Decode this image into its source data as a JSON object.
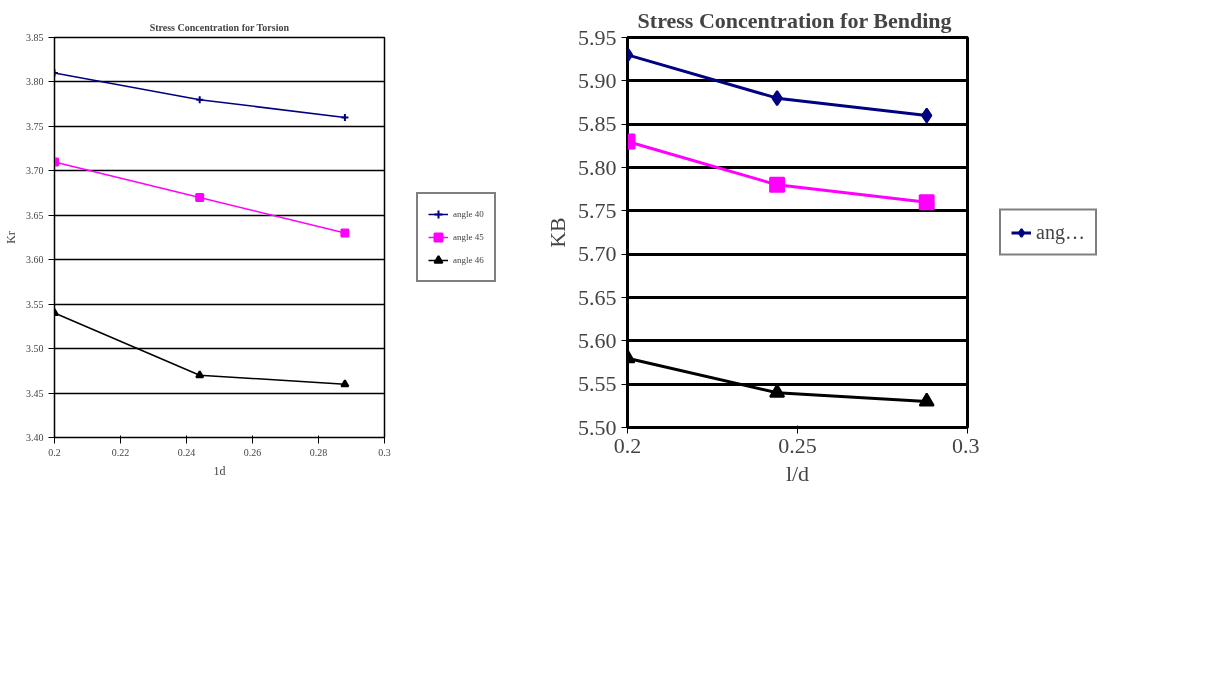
{
  "chart_data": [
    {
      "type": "line",
      "title": "Stress Concentration for Torsion",
      "xlabel": "1d",
      "ylabel": "Kr",
      "x": [
        0.2,
        0.244,
        0.288
      ],
      "series": [
        {
          "name": "angle 40",
          "color": "#000080",
          "marker": "cross",
          "values": [
            3.81,
            3.78,
            3.76
          ]
        },
        {
          "name": "angle 45",
          "color": "#ff00ff",
          "marker": "square",
          "values": [
            3.71,
            3.67,
            3.63
          ]
        },
        {
          "name": "angle 46",
          "color": "#000000",
          "marker": "triangle",
          "values": [
            3.54,
            3.47,
            3.46
          ]
        }
      ],
      "xlim": [
        0.2,
        0.3
      ],
      "xticks": [
        0.2,
        0.22,
        0.24,
        0.26,
        0.28,
        0.3
      ],
      "ylim": [
        3.4,
        3.85
      ],
      "yticks": [
        {
          "value": 3.4,
          "label": "3.40"
        },
        3.45,
        {
          "value": 3.5,
          "label": "3.50"
        },
        3.55,
        {
          "value": 3.6,
          "label": "3.60"
        },
        3.65,
        {
          "value": 3.7,
          "label": "3.70"
        },
        3.75,
        {
          "value": 3.8,
          "label": "3.80"
        },
        3.85
      ],
      "grid": "y",
      "legend": "right"
    },
    {
      "type": "line",
      "title": "Stress Concentration  for Bending",
      "xlabel": "l/d",
      "ylabel": "KB",
      "x": [
        0.2,
        0.244,
        0.288
      ],
      "series": [
        {
          "name": "ang…",
          "color": "#000080",
          "marker": "diamond",
          "values": [
            5.93,
            5.88,
            5.86
          ]
        },
        {
          "color": "#ff00ff",
          "marker": "square",
          "values": [
            5.83,
            5.78,
            5.76
          ]
        },
        {
          "color": "#000000",
          "marker": "triangle",
          "values": [
            5.58,
            5.54,
            5.53
          ]
        }
      ],
      "xlim": [
        0.2,
        0.3
      ],
      "xticks": [
        0.2,
        0.25,
        0.3
      ],
      "ylim": [
        5.5,
        5.95
      ],
      "yticks": [
        {
          "value": 5.5,
          "label": "5.50"
        },
        5.55,
        {
          "value": 5.6,
          "label": "5.60"
        },
        5.65,
        {
          "value": 5.7,
          "label": "5.70"
        },
        5.75,
        {
          "value": 5.8,
          "label": "5.80"
        },
        5.85,
        {
          "value": 5.9,
          "label": "5.90"
        },
        5.95
      ],
      "grid": "y",
      "legend": "right"
    }
  ]
}
